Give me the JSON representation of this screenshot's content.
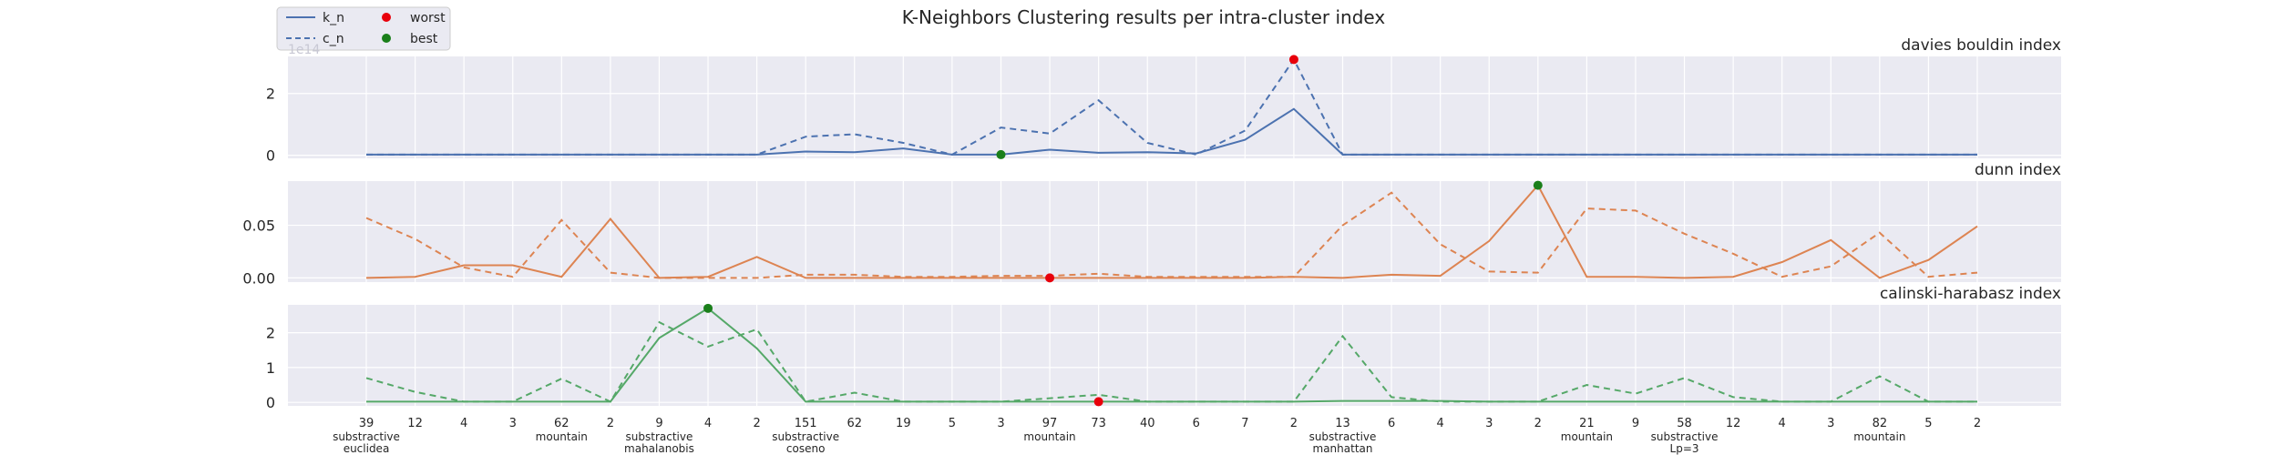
{
  "figure": {
    "title": "K-Neighbors Clustering results per intra-cluster index"
  },
  "legend": {
    "placement": "top-left",
    "entries": [
      {
        "label": "k_n",
        "kind": "solid-line"
      },
      {
        "label": "c_n",
        "kind": "dashed-line"
      },
      {
        "label": "worst",
        "kind": "marker",
        "color": "#e8000b"
      },
      {
        "label": "best",
        "kind": "marker",
        "color": "#1a7f1a"
      }
    ]
  },
  "colors": {
    "panel_bg": "#eaeaf2",
    "grid": "#ffffff",
    "worst": "#e8000b",
    "best": "#1a7f1a"
  },
  "x_axis": {
    "tick_labels": [
      "39",
      "12",
      "4",
      "3",
      "62",
      "2",
      "9",
      "4",
      "2",
      "151",
      "62",
      "19",
      "5",
      "3",
      "97",
      "73",
      "40",
      "6",
      "7",
      "2",
      "13",
      "6",
      "4",
      "3",
      "2",
      "21",
      "9",
      "58",
      "12",
      "4",
      "3",
      "82",
      "5",
      "2"
    ],
    "group_labels": [
      {
        "at": 0,
        "lines": [
          "substractive",
          "euclidea"
        ]
      },
      {
        "at": 4,
        "lines": [
          "mountain"
        ]
      },
      {
        "at": 6,
        "lines": [
          "substractive",
          "mahalanobis"
        ]
      },
      {
        "at": 9,
        "lines": [
          "substractive",
          "coseno"
        ]
      },
      {
        "at": 14,
        "lines": [
          "mountain"
        ]
      },
      {
        "at": 20,
        "lines": [
          "substractive",
          "manhattan"
        ]
      },
      {
        "at": 25,
        "lines": [
          "mountain"
        ]
      },
      {
        "at": 27,
        "lines": [
          "substractive",
          "Lp=3"
        ]
      },
      {
        "at": 31,
        "lines": [
          "mountain"
        ]
      }
    ]
  },
  "chart_data": [
    {
      "type": "line",
      "title": "davies bouldin index",
      "color": "#4c72b0",
      "scale_label": "1e14",
      "ylim": [
        -0.1,
        3.2
      ],
      "yticks": [
        0,
        2
      ],
      "series": [
        {
          "name": "k_n",
          "style": "solid",
          "values": [
            0.02,
            0.02,
            0.02,
            0.02,
            0.02,
            0.02,
            0.02,
            0.02,
            0.02,
            0.12,
            0.1,
            0.22,
            0.02,
            0.02,
            0.18,
            0.08,
            0.1,
            0.06,
            0.5,
            1.5,
            0.02,
            0.02,
            0.02,
            0.02,
            0.02,
            0.02,
            0.02,
            0.02,
            0.02,
            0.02,
            0.02,
            0.02,
            0.02,
            0.02
          ]
        },
        {
          "name": "c_n",
          "style": "dashed",
          "values": [
            0.02,
            0.02,
            0.02,
            0.02,
            0.02,
            0.02,
            0.02,
            0.02,
            0.02,
            0.6,
            0.68,
            0.4,
            0.02,
            0.9,
            0.7,
            1.78,
            0.4,
            0.02,
            0.8,
            3.1,
            0.02,
            0.02,
            0.02,
            0.02,
            0.02,
            0.02,
            0.02,
            0.02,
            0.02,
            0.02,
            0.02,
            0.02,
            0.02,
            0.02
          ]
        }
      ],
      "worst": {
        "index": 19,
        "value": 3.1
      },
      "best": {
        "index": 13,
        "value": 0.02
      }
    },
    {
      "type": "line",
      "title": "dunn index",
      "color": "#dd8452",
      "ylim": [
        -0.004,
        0.092
      ],
      "yticks": [
        0.0,
        0.05
      ],
      "ytick_labels": [
        "0.00",
        "0.05"
      ],
      "series": [
        {
          "name": "k_n",
          "style": "solid",
          "values": [
            0.0,
            0.001,
            0.012,
            0.012,
            0.001,
            0.056,
            0.0,
            0.001,
            0.02,
            0.0,
            0.0,
            0.0,
            0.0,
            0.0,
            0.0,
            0.0,
            0.0,
            0.0,
            0.0,
            0.001,
            0.0,
            0.003,
            0.002,
            0.035,
            0.088,
            0.001,
            0.001,
            0.0,
            0.001,
            0.015,
            0.036,
            0.0,
            0.017,
            0.049
          ]
        },
        {
          "name": "c_n",
          "style": "dashed",
          "values": [
            0.057,
            0.037,
            0.01,
            0.001,
            0.055,
            0.005,
            0.0,
            0.0,
            0.0,
            0.003,
            0.003,
            0.001,
            0.001,
            0.002,
            0.002,
            0.004,
            0.001,
            0.001,
            0.001,
            0.001,
            0.05,
            0.081,
            0.032,
            0.006,
            0.005,
            0.066,
            0.064,
            0.042,
            0.023,
            0.001,
            0.011,
            0.043,
            0.001,
            0.005
          ]
        }
      ],
      "worst": {
        "index": 14,
        "value": 0.0
      },
      "best": {
        "index": 24,
        "value": 0.088
      }
    },
    {
      "type": "line",
      "title": "calinski-harabasz index",
      "color": "#55a868",
      "ylim": [
        -0.1,
        2.8
      ],
      "yticks": [
        0,
        1,
        2
      ],
      "series": [
        {
          "name": "k_n",
          "style": "solid",
          "values": [
            0.02,
            0.02,
            0.02,
            0.02,
            0.02,
            0.02,
            1.85,
            2.7,
            1.55,
            0.02,
            0.02,
            0.02,
            0.02,
            0.02,
            0.02,
            0.02,
            0.02,
            0.02,
            0.02,
            0.02,
            0.04,
            0.04,
            0.04,
            0.02,
            0.02,
            0.02,
            0.02,
            0.02,
            0.02,
            0.02,
            0.02,
            0.02,
            0.02,
            0.02
          ]
        },
        {
          "name": "c_n",
          "style": "dashed",
          "values": [
            0.7,
            0.3,
            0.02,
            0.02,
            0.68,
            0.02,
            2.3,
            1.6,
            2.1,
            0.02,
            0.28,
            0.02,
            0.02,
            0.02,
            0.12,
            0.22,
            0.02,
            0.02,
            0.02,
            0.02,
            1.9,
            0.15,
            0.02,
            0.02,
            0.02,
            0.5,
            0.25,
            0.7,
            0.15,
            0.02,
            0.02,
            0.75,
            0.02,
            0.02
          ]
        }
      ],
      "worst": {
        "index": 15,
        "value": 0.02
      },
      "best": {
        "index": 7,
        "value": 2.7
      }
    }
  ]
}
